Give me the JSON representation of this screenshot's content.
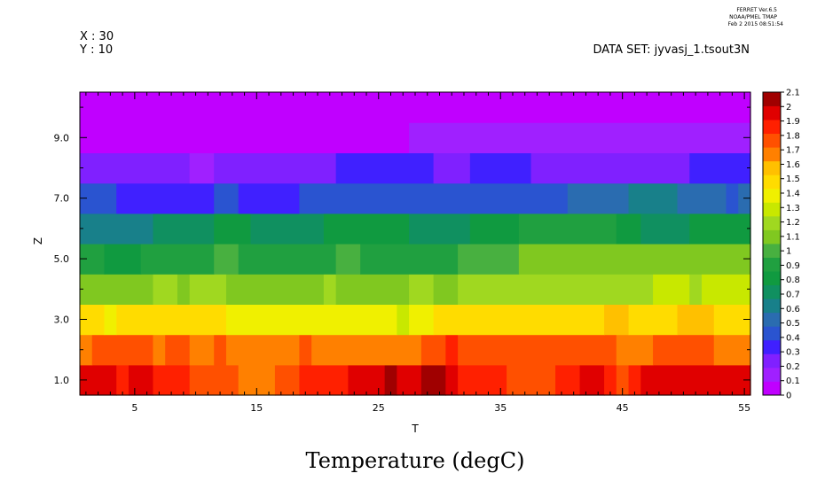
{
  "header": {
    "stamp_lines": [
      "FERRET Ver.6.5",
      "NOAA/PMEL TMAP",
      "Feb 2 2015 08:51:54"
    ],
    "x_label": "X : 30",
    "y_label": "Y : 10",
    "dataset": "DATA SET: jyvasj_1.tsout3N"
  },
  "chart_data": {
    "type": "heatmap",
    "title": "Temperature (degC)",
    "xlabel": "T",
    "ylabel": "Z",
    "xlim": [
      0.5,
      55.5
    ],
    "ylim": [
      0.5,
      10.5
    ],
    "x_ticks": [
      5,
      15,
      25,
      35,
      45,
      55
    ],
    "y_ticks": [
      1.0,
      3.0,
      5.0,
      7.0,
      9.0
    ],
    "y_tick_labels": [
      "1.0",
      "3.0",
      "5.0",
      "7.0",
      "9.0"
    ],
    "colorbar": {
      "min": 0,
      "max": 2.1,
      "ticks": [
        "0",
        "0.1",
        "0.2",
        "0.3",
        "0.4",
        "0.5",
        "0.6",
        "0.7",
        "0.8",
        "0.9",
        "1",
        "1.1",
        "1.2",
        "1.3",
        "1.4",
        "1.5",
        "1.6",
        "1.7",
        "1.8",
        "1.9",
        "2",
        "2.1"
      ],
      "colors": [
        "#c000ff",
        "#a020ff",
        "#8020ff",
        "#4020ff",
        "#2a54d0",
        "#2a6cb0",
        "#18808a",
        "#109060",
        "#109a40",
        "#20a040",
        "#48b040",
        "#80c820",
        "#a0d820",
        "#c8e800",
        "#f0f000",
        "#ffdc00",
        "#ffc000",
        "#ff8000",
        "#ff5000",
        "#ff2000",
        "#e00000",
        "#a00000"
      ]
    },
    "rows": [
      {
        "z": 1,
        "segments": [
          [
            0.5,
            3.5,
            2.0
          ],
          [
            3.5,
            4.5,
            1.9
          ],
          [
            4.5,
            6.5,
            2.0
          ],
          [
            6.5,
            9.5,
            1.9
          ],
          [
            9.5,
            13.5,
            1.8
          ],
          [
            13.5,
            16.5,
            1.7
          ],
          [
            16.5,
            18.5,
            1.8
          ],
          [
            18.5,
            22.5,
            1.9
          ],
          [
            22.5,
            25.5,
            2.0
          ],
          [
            25.5,
            26.5,
            2.1
          ],
          [
            26.5,
            28.5,
            2.0
          ],
          [
            28.5,
            30.5,
            2.1
          ],
          [
            30.5,
            31.5,
            2.0
          ],
          [
            31.5,
            32.5,
            1.9
          ],
          [
            32.5,
            35.5,
            1.9
          ],
          [
            35.5,
            39.5,
            1.8
          ],
          [
            39.5,
            41.5,
            1.9
          ],
          [
            41.5,
            43.5,
            2.0
          ],
          [
            43.5,
            44.5,
            1.9
          ],
          [
            44.5,
            45.5,
            1.8
          ],
          [
            45.5,
            46.5,
            1.9
          ],
          [
            46.5,
            55.5,
            2.0
          ]
        ]
      },
      {
        "z": 2,
        "segments": [
          [
            0.5,
            1.5,
            1.7
          ],
          [
            1.5,
            6.5,
            1.8
          ],
          [
            6.5,
            7.5,
            1.7
          ],
          [
            7.5,
            9.5,
            1.8
          ],
          [
            9.5,
            11.5,
            1.7
          ],
          [
            11.5,
            12.5,
            1.8
          ],
          [
            12.5,
            18.5,
            1.7
          ],
          [
            18.5,
            19.5,
            1.8
          ],
          [
            19.5,
            28.5,
            1.7
          ],
          [
            28.5,
            30.5,
            1.8
          ],
          [
            30.5,
            31.5,
            1.9
          ],
          [
            31.5,
            44.5,
            1.8
          ],
          [
            44.5,
            47.5,
            1.7
          ],
          [
            47.5,
            52.5,
            1.8
          ],
          [
            52.5,
            55.5,
            1.7
          ]
        ]
      },
      {
        "z": 3,
        "segments": [
          [
            0.5,
            2.5,
            1.5
          ],
          [
            2.5,
            3.5,
            1.4
          ],
          [
            3.5,
            12.5,
            1.5
          ],
          [
            12.5,
            26.5,
            1.4
          ],
          [
            26.5,
            27.5,
            1.3
          ],
          [
            27.5,
            29.5,
            1.4
          ],
          [
            29.5,
            43.5,
            1.5
          ],
          [
            43.5,
            45.5,
            1.6
          ],
          [
            45.5,
            49.5,
            1.5
          ],
          [
            49.5,
            52.5,
            1.6
          ],
          [
            52.5,
            55.5,
            1.5
          ]
        ]
      },
      {
        "z": 4,
        "segments": [
          [
            0.5,
            6.5,
            1.1
          ],
          [
            6.5,
            8.5,
            1.2
          ],
          [
            8.5,
            9.5,
            1.1
          ],
          [
            9.5,
            12.5,
            1.2
          ],
          [
            12.5,
            20.5,
            1.1
          ],
          [
            20.5,
            21.5,
            1.2
          ],
          [
            21.5,
            27.5,
            1.1
          ],
          [
            27.5,
            29.5,
            1.2
          ],
          [
            29.5,
            31.5,
            1.1
          ],
          [
            31.5,
            47.5,
            1.2
          ],
          [
            47.5,
            50.5,
            1.3
          ],
          [
            50.5,
            51.5,
            1.2
          ],
          [
            51.5,
            55.5,
            1.3
          ]
        ]
      },
      {
        "z": 5,
        "segments": [
          [
            0.5,
            2.5,
            0.9
          ],
          [
            2.5,
            5.5,
            0.8
          ],
          [
            5.5,
            11.5,
            0.9
          ],
          [
            11.5,
            13.5,
            1.0
          ],
          [
            13.5,
            21.5,
            0.9
          ],
          [
            21.5,
            23.5,
            1.0
          ],
          [
            23.5,
            31.5,
            0.9
          ],
          [
            31.5,
            36.5,
            1.0
          ],
          [
            36.5,
            55.5,
            1.1
          ]
        ]
      },
      {
        "z": 6,
        "segments": [
          [
            0.5,
            6.5,
            0.6
          ],
          [
            6.5,
            11.5,
            0.7
          ],
          [
            11.5,
            14.5,
            0.8
          ],
          [
            14.5,
            20.5,
            0.7
          ],
          [
            20.5,
            27.5,
            0.8
          ],
          [
            27.5,
            32.5,
            0.7
          ],
          [
            32.5,
            36.5,
            0.8
          ],
          [
            36.5,
            44.5,
            0.9
          ],
          [
            44.5,
            46.5,
            0.8
          ],
          [
            46.5,
            50.5,
            0.7
          ],
          [
            50.5,
            55.5,
            0.8
          ]
        ]
      },
      {
        "z": 7,
        "segments": [
          [
            0.5,
            3.5,
            0.4
          ],
          [
            3.5,
            11.5,
            0.3
          ],
          [
            11.5,
            13.5,
            0.4
          ],
          [
            13.5,
            18.5,
            0.3
          ],
          [
            18.5,
            21.5,
            0.4
          ],
          [
            21.5,
            40.5,
            0.4
          ],
          [
            40.5,
            45.5,
            0.5
          ],
          [
            45.5,
            49.5,
            0.6
          ],
          [
            49.5,
            53.5,
            0.5
          ],
          [
            53.5,
            54.5,
            0.4
          ],
          [
            54.5,
            55.5,
            0.5
          ]
        ]
      },
      {
        "z": 8,
        "segments": [
          [
            0.5,
            9.5,
            0.2
          ],
          [
            9.5,
            11.5,
            0.1
          ],
          [
            11.5,
            21.5,
            0.2
          ],
          [
            21.5,
            29.5,
            0.3
          ],
          [
            29.5,
            32.5,
            0.2
          ],
          [
            32.5,
            37.5,
            0.3
          ],
          [
            37.5,
            50.5,
            0.2
          ],
          [
            50.5,
            55.5,
            0.3
          ]
        ]
      },
      {
        "z": 9,
        "segments": [
          [
            0.5,
            27.5,
            0.0
          ],
          [
            27.5,
            55.5,
            0.1
          ]
        ]
      },
      {
        "z": 10,
        "segments": [
          [
            0.5,
            55.5,
            0.0
          ]
        ]
      }
    ]
  }
}
